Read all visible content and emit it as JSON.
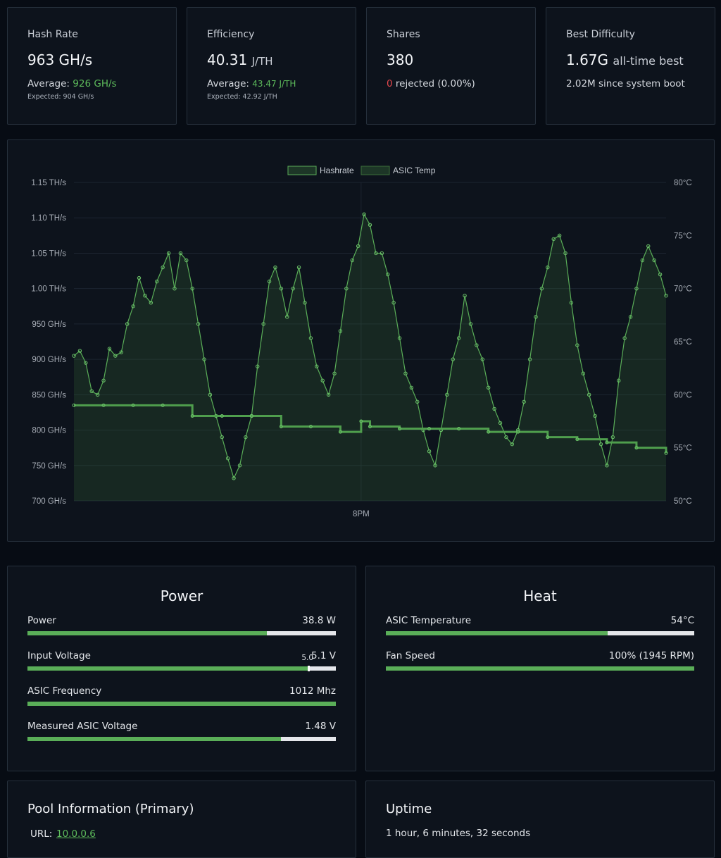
{
  "stats": {
    "hashrate": {
      "label": "Hash Rate",
      "value": "963 GH/s",
      "avg_prefix": "Average:",
      "avg": "926 GH/s",
      "expected": "Expected: 904 GH/s"
    },
    "efficiency": {
      "label": "Efficiency",
      "value": "40.31",
      "unit": "J/TH",
      "avg_prefix": "Average:",
      "avg": "43.47 J/TH",
      "expected": "Expected: 42.92 J/TH"
    },
    "shares": {
      "label": "Shares",
      "value": "380",
      "rejected_count": "0",
      "rejected_text": "rejected (0.00%)"
    },
    "difficulty": {
      "label": "Best Difficulty",
      "value": "1.67G",
      "value_suffix": "all-time best",
      "since_boot": "2.02M since system boot"
    }
  },
  "chart_data": {
    "type": "line",
    "legend": [
      "Hashrate",
      "ASIC Temp"
    ],
    "x_tick_labels": [
      "8PM"
    ],
    "y_left": {
      "label": "Hashrate",
      "ticks": [
        "700 GH/s",
        "750 GH/s",
        "800 GH/s",
        "850 GH/s",
        "900 GH/s",
        "950 GH/s",
        "1.00 TH/s",
        "1.05 TH/s",
        "1.10 TH/s",
        "1.15 TH/s"
      ],
      "ylim": [
        700,
        1150
      ],
      "unit": "GH/s"
    },
    "y_right": {
      "label": "ASIC Temp",
      "ticks": [
        "50°C",
        "55°C",
        "60°C",
        "65°C",
        "70°C",
        "75°C",
        "80°C"
      ],
      "ylim": [
        50,
        80
      ],
      "unit": "°C"
    },
    "x_range": [
      0,
      100
    ],
    "x_8pm": 48.5,
    "series": [
      {
        "name": "Hashrate",
        "unit": "GH/s",
        "points": [
          [
            0,
            905
          ],
          [
            1,
            912
          ],
          [
            2,
            895
          ],
          [
            3,
            855
          ],
          [
            4,
            850
          ],
          [
            5,
            870
          ],
          [
            6,
            915
          ],
          [
            7,
            905
          ],
          [
            8,
            910
          ],
          [
            9,
            950
          ],
          [
            10,
            975
          ],
          [
            11,
            1015
          ],
          [
            12,
            990
          ],
          [
            13,
            980
          ],
          [
            14,
            1010
          ],
          [
            15,
            1030
          ],
          [
            16,
            1050
          ],
          [
            17,
            1000
          ],
          [
            18,
            1050
          ],
          [
            19,
            1040
          ],
          [
            20,
            1000
          ],
          [
            21,
            950
          ],
          [
            22,
            900
          ],
          [
            23,
            850
          ],
          [
            24,
            820
          ],
          [
            25,
            790
          ],
          [
            26,
            760
          ],
          [
            27,
            732
          ],
          [
            28,
            750
          ],
          [
            29,
            790
          ],
          [
            30,
            820
          ],
          [
            31,
            890
          ],
          [
            32,
            950
          ],
          [
            33,
            1010
          ],
          [
            34,
            1030
          ],
          [
            35,
            1000
          ],
          [
            36,
            960
          ],
          [
            37,
            1000
          ],
          [
            38,
            1030
          ],
          [
            39,
            980
          ],
          [
            40,
            930
          ],
          [
            41,
            890
          ],
          [
            42,
            870
          ],
          [
            43,
            850
          ],
          [
            44,
            880
          ],
          [
            45,
            940
          ],
          [
            46,
            1000
          ],
          [
            47,
            1040
          ],
          [
            48,
            1060
          ],
          [
            49,
            1105
          ],
          [
            50,
            1090
          ],
          [
            51,
            1050
          ],
          [
            52,
            1050
          ],
          [
            53,
            1020
          ],
          [
            54,
            980
          ],
          [
            55,
            930
          ],
          [
            56,
            880
          ],
          [
            57,
            860
          ],
          [
            58,
            840
          ],
          [
            59,
            800
          ],
          [
            60,
            770
          ],
          [
            61,
            750
          ],
          [
            62,
            800
          ],
          [
            63,
            850
          ],
          [
            64,
            900
          ],
          [
            65,
            930
          ],
          [
            66,
            990
          ],
          [
            67,
            950
          ],
          [
            68,
            920
          ],
          [
            69,
            900
          ],
          [
            70,
            860
          ],
          [
            71,
            830
          ],
          [
            72,
            810
          ],
          [
            73,
            790
          ],
          [
            74,
            780
          ],
          [
            75,
            800
          ],
          [
            76,
            840
          ],
          [
            77,
            900
          ],
          [
            78,
            960
          ],
          [
            79,
            1000
          ],
          [
            80,
            1030
          ],
          [
            81,
            1070
          ],
          [
            82,
            1075
          ],
          [
            83,
            1050
          ],
          [
            84,
            980
          ],
          [
            85,
            920
          ],
          [
            86,
            880
          ],
          [
            87,
            850
          ],
          [
            88,
            820
          ],
          [
            89,
            780
          ],
          [
            90,
            750
          ],
          [
            91,
            790
          ],
          [
            92,
            870
          ],
          [
            93,
            930
          ],
          [
            94,
            960
          ],
          [
            95,
            1000
          ],
          [
            96,
            1040
          ],
          [
            97,
            1060
          ],
          [
            98,
            1040
          ],
          [
            99,
            1020
          ],
          [
            100,
            990
          ]
        ]
      },
      {
        "name": "ASIC Temp",
        "unit": "°C",
        "points": [
          [
            0,
            59
          ],
          [
            5,
            59
          ],
          [
            10,
            59
          ],
          [
            15,
            59
          ],
          [
            20,
            58
          ],
          [
            25,
            58
          ],
          [
            30,
            58
          ],
          [
            35,
            57
          ],
          [
            40,
            57
          ],
          [
            45,
            56.5
          ],
          [
            48.5,
            57.5
          ],
          [
            50,
            57
          ],
          [
            55,
            56.8
          ],
          [
            60,
            56.8
          ],
          [
            65,
            56.8
          ],
          [
            70,
            56.5
          ],
          [
            75,
            56.5
          ],
          [
            80,
            56
          ],
          [
            85,
            55.8
          ],
          [
            90,
            55.5
          ],
          [
            95,
            55
          ],
          [
            100,
            54.5
          ]
        ]
      }
    ]
  },
  "power": {
    "title": "Power",
    "rows": [
      {
        "name": "Power",
        "value": "38.8 W",
        "fill": 0.776
      },
      {
        "name": "Input Voltage",
        "value": "5.1 V",
        "fill": 0.914,
        "marker_label": "5.0",
        "marker": 0.908
      },
      {
        "name": "ASIC Frequency",
        "value": "1012 Mhz",
        "fill": 1.0
      },
      {
        "name": "Measured ASIC Voltage",
        "value": "1.48 V",
        "fill": 0.822
      }
    ]
  },
  "heat": {
    "title": "Heat",
    "rows": [
      {
        "name": "ASIC Temperature",
        "value": "54°C",
        "fill": 0.72
      },
      {
        "name": "Fan Speed",
        "value": "100% (1945 RPM)",
        "fill": 1.0
      }
    ]
  },
  "pool": {
    "title": "Pool Information (Primary)",
    "url_label": "URL:",
    "url": "10.0.0.6"
  },
  "uptime": {
    "title": "Uptime",
    "text": "1 hour, 6 minutes, 32 seconds"
  }
}
